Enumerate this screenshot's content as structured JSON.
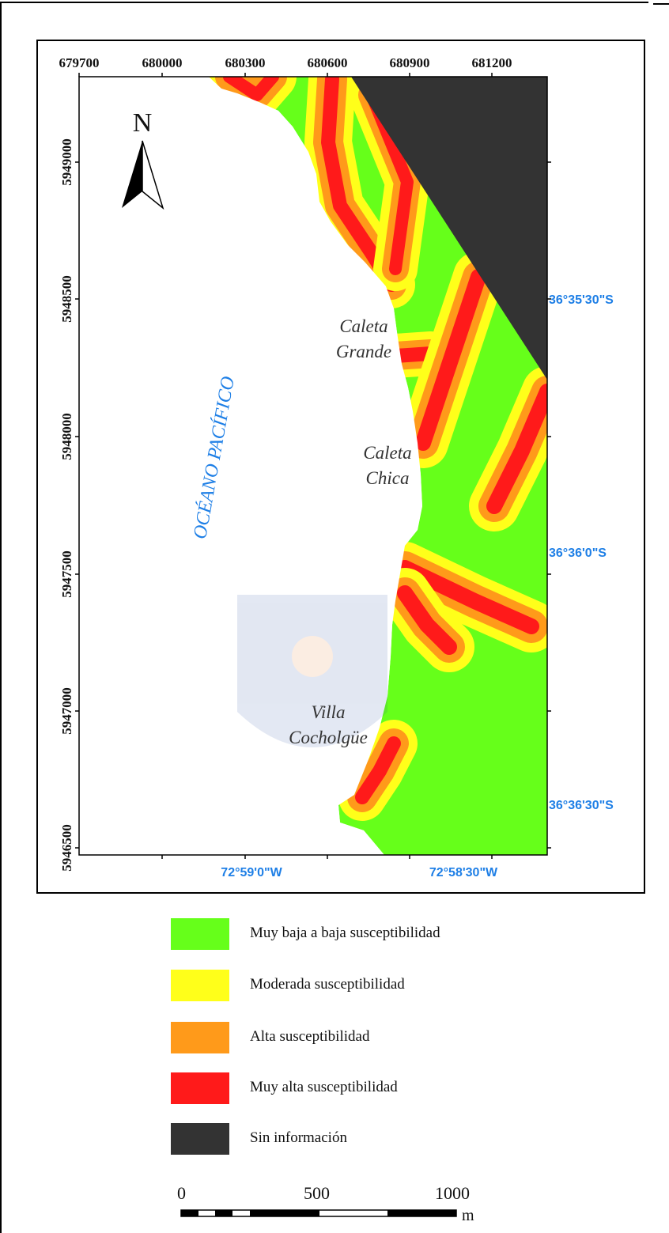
{
  "map": {
    "x_ticks": [
      "679700",
      "680000",
      "680300",
      "680600",
      "680900",
      "681200"
    ],
    "y_ticks": [
      "5949000",
      "5948500",
      "5948000",
      "5947500",
      "5947000",
      "5946500"
    ],
    "lat_labels": [
      "36°35'30\"S",
      "36°36'0\"S",
      "36°36'30\"S"
    ],
    "lon_labels": [
      "72°59'0\"W",
      "72°58'30\"W"
    ],
    "north_label": "N",
    "ocean_label": "OCÉANO PACÍFICO",
    "places": [
      {
        "line1": "Caleta",
        "line2": "Grande"
      },
      {
        "line1": "Caleta",
        "line2": "Chica"
      },
      {
        "line1": "Villa",
        "line2": "Cocholgüe"
      }
    ]
  },
  "legend": {
    "items": [
      {
        "label": "Muy baja a baja susceptibilidad",
        "color": "#66ff1a"
      },
      {
        "label": "Moderada susceptibilidad",
        "color": "#ffff1a"
      },
      {
        "label": "Alta susceptibilidad",
        "color": "#ff9a1a"
      },
      {
        "label": "Muy alta susceptibilidad",
        "color": "#ff1a1a"
      },
      {
        "label": "Sin información",
        "color": "#333333"
      }
    ]
  },
  "scale_bar": {
    "labels": [
      "0",
      "500",
      "1000"
    ],
    "unit": "m"
  },
  "colors": {
    "coordinate_label": "#1e7fe6",
    "ocean_label": "#1e7fe6",
    "grid": "#d8d8d8"
  }
}
